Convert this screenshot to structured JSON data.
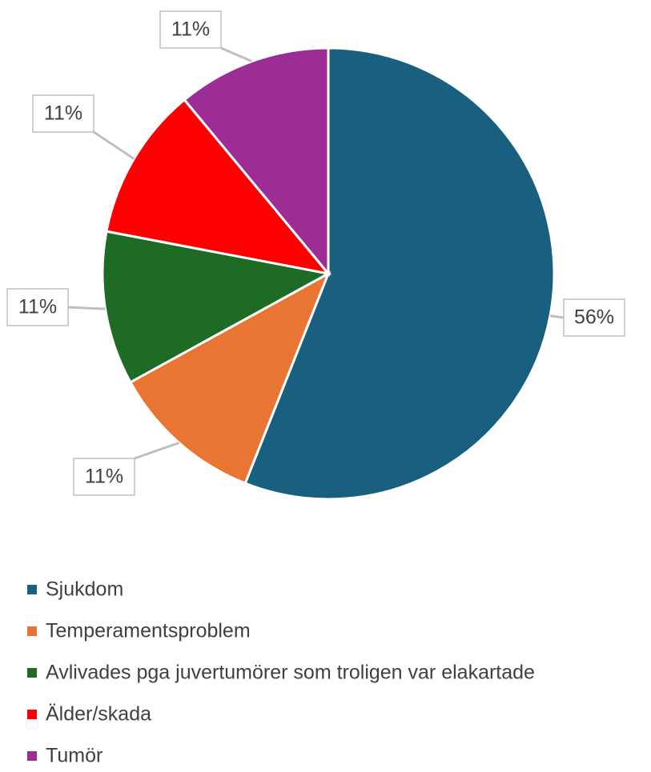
{
  "chart_data": {
    "type": "pie",
    "categories": [
      "Sjukdom",
      "Temperamentsproblem",
      "Avlivades pga juvertumörer som troligen var elakartade",
      "Älder/skada",
      "Tumör"
    ],
    "values": [
      56,
      11,
      11,
      11,
      11
    ],
    "value_labels": [
      "56%",
      "11%",
      "11%",
      "11%",
      "11%"
    ],
    "colors": [
      "#185f80",
      "#e97532",
      "#1d6b25",
      "#ff0000",
      "#9b2d95"
    ],
    "legend": "bottom"
  }
}
